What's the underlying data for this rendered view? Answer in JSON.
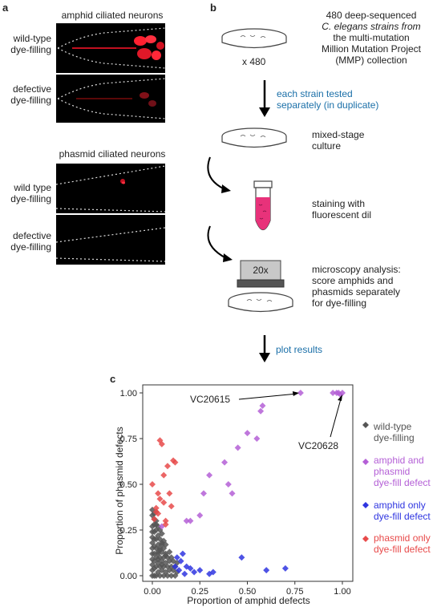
{
  "panels": {
    "a": "a",
    "b": "b",
    "c": "c"
  },
  "panel_a": {
    "amphid_title": "amphid ciliated neurons",
    "amphid_wt": [
      "wild-type",
      "dye-filling"
    ],
    "amphid_def": [
      "defective",
      "dye-filling"
    ],
    "phasmid_title": "phasmid ciliated neurons",
    "phasmid_wt": [
      "wild type",
      "dye-filling"
    ],
    "phasmid_def": [
      "defective",
      "dye-filling"
    ]
  },
  "panel_b": {
    "step1": [
      "480 deep-sequenced",
      "C. elegans strains from",
      "the multi-mutation",
      "Million Mutation Project",
      "(MMP) collection"
    ],
    "multiplier": "x 480",
    "arrow1": [
      "each strain tested",
      "separately (in duplicate)"
    ],
    "step2": [
      "mixed-stage",
      "culture"
    ],
    "step3": [
      "staining with",
      "fluorescent dil"
    ],
    "step4": [
      "microscopy analysis:",
      "score amphids and",
      "phasmids separately",
      "for dye-filling"
    ],
    "objective": "20x",
    "arrow2": "plot results"
  },
  "chart_data": {
    "type": "scatter",
    "xlabel": "Proportion of amphid defects",
    "ylabel": "Proportion of phasmid defects",
    "xlim": [
      0,
      1
    ],
    "ylim": [
      0,
      1
    ],
    "xticks": [
      "0.00",
      "0.25",
      "0.50",
      "0.75",
      "1.00"
    ],
    "yticks": [
      "0.00",
      "0.25",
      "0.50",
      "0.75",
      "1.00"
    ],
    "legend_position": "right",
    "annotations": [
      {
        "text": "VC20615",
        "x": 0.78,
        "y": 1.0
      },
      {
        "text": "VC20628",
        "x": 1.0,
        "y": 1.0
      }
    ],
    "series": [
      {
        "name": "wild-type dye-filling",
        "color": "#555555",
        "x": [
          0.0,
          0.0,
          0.0,
          0.0,
          0.0,
          0.0,
          0.0,
          0.0,
          0.0,
          0.0,
          0.01,
          0.01,
          0.01,
          0.01,
          0.01,
          0.01,
          0.01,
          0.01,
          0.02,
          0.02,
          0.02,
          0.02,
          0.02,
          0.02,
          0.02,
          0.03,
          0.03,
          0.03,
          0.03,
          0.03,
          0.03,
          0.04,
          0.04,
          0.04,
          0.04,
          0.04,
          0.05,
          0.05,
          0.05,
          0.05,
          0.05,
          0.06,
          0.06,
          0.06,
          0.06,
          0.07,
          0.07,
          0.07,
          0.07,
          0.08,
          0.08,
          0.08,
          0.09,
          0.09,
          0.09,
          0.1,
          0.1,
          0.1,
          0.11,
          0.11,
          0.12,
          0.12,
          0.13,
          0.13,
          0.0,
          0.01,
          0.02,
          0.03,
          0.04,
          0.05,
          0.06,
          0.07,
          0.0,
          0.01,
          0.02,
          0.03,
          0.04,
          0.05
        ],
        "y": [
          0.0,
          0.03,
          0.06,
          0.09,
          0.12,
          0.15,
          0.18,
          0.21,
          0.24,
          0.27,
          0.0,
          0.04,
          0.08,
          0.12,
          0.16,
          0.2,
          0.24,
          0.28,
          0.0,
          0.05,
          0.1,
          0.15,
          0.2,
          0.25,
          0.3,
          0.02,
          0.07,
          0.12,
          0.17,
          0.22,
          0.27,
          0.0,
          0.05,
          0.1,
          0.15,
          0.2,
          0.03,
          0.08,
          0.13,
          0.18,
          0.23,
          0.0,
          0.05,
          0.1,
          0.15,
          0.02,
          0.07,
          0.12,
          0.17,
          0.0,
          0.05,
          0.1,
          0.03,
          0.08,
          0.13,
          0.0,
          0.05,
          0.1,
          0.03,
          0.08,
          0.0,
          0.05,
          0.02,
          0.07,
          0.33,
          0.31,
          0.35,
          0.09,
          0.14,
          0.06,
          0.19,
          0.11,
          0.36,
          0.34,
          0.28,
          0.13,
          0.25,
          0.17
        ]
      },
      {
        "name": "amphid and phasmid dye-fill defect",
        "color": "#b45fd6",
        "x": [
          0.05,
          0.18,
          0.2,
          0.25,
          0.27,
          0.3,
          0.38,
          0.4,
          0.42,
          0.45,
          0.5,
          0.55,
          0.57,
          0.58,
          0.78,
          0.95,
          0.97,
          0.98,
          0.99,
          1.0
        ],
        "y": [
          0.27,
          0.3,
          0.3,
          0.33,
          0.45,
          0.55,
          0.62,
          0.5,
          0.45,
          0.7,
          0.78,
          0.75,
          0.9,
          0.93,
          1.0,
          1.0,
          1.0,
          1.0,
          0.99,
          1.0
        ]
      },
      {
        "name": "amphid only dye-fill defect",
        "color": "#2f35e0",
        "x": [
          0.12,
          0.13,
          0.14,
          0.15,
          0.16,
          0.17,
          0.18,
          0.2,
          0.22,
          0.25,
          0.3,
          0.32,
          0.47,
          0.6,
          0.7
        ],
        "y": [
          0.05,
          0.1,
          0.03,
          0.08,
          0.12,
          0.01,
          0.05,
          0.04,
          0.02,
          0.03,
          0.01,
          0.02,
          0.1,
          0.03,
          0.04
        ]
      },
      {
        "name": "phasmid only dye-fill defect",
        "color": "#e84a4a",
        "x": [
          0.01,
          0.02,
          0.03,
          0.04,
          0.05,
          0.06,
          0.07,
          0.08,
          0.09,
          0.1,
          0.11,
          0.12,
          0.0,
          0.02,
          0.04,
          0.06,
          0.03,
          0.07
        ],
        "y": [
          0.31,
          0.37,
          0.45,
          0.74,
          0.72,
          0.4,
          0.3,
          0.6,
          0.45,
          0.38,
          0.63,
          0.62,
          0.5,
          0.35,
          0.42,
          0.55,
          0.34,
          0.28
        ]
      }
    ]
  }
}
